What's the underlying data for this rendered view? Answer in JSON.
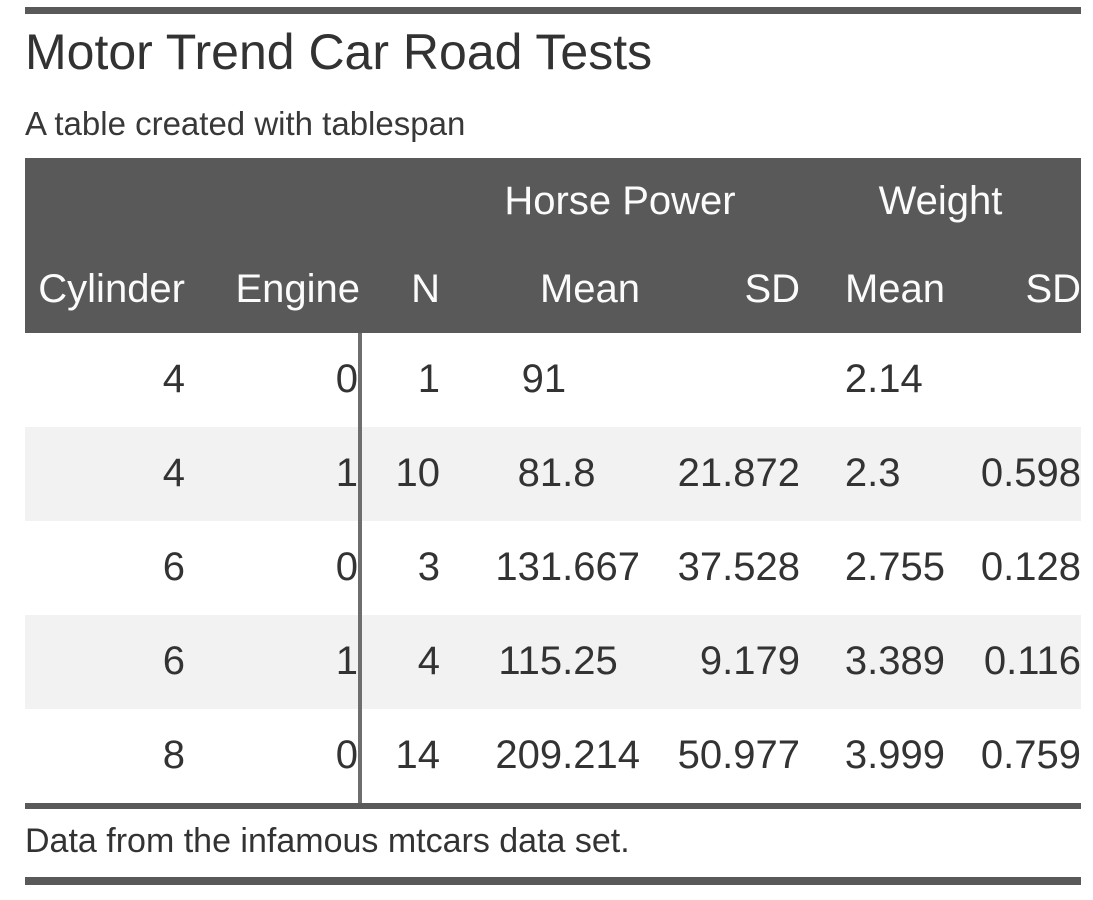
{
  "chart_data": {
    "type": "table",
    "title": "Motor Trend Car Road Tests",
    "subtitle": "A table created with tablespan",
    "footnote": "Data from the infamous mtcars data set.",
    "column_groups": [
      {
        "label": "Horse Power",
        "columns": [
          "Mean",
          "SD"
        ]
      },
      {
        "label": "Weight",
        "columns": [
          "Mean",
          "SD"
        ]
      }
    ],
    "columns": [
      "Cylinder",
      "Engine",
      "N",
      "Mean",
      "SD",
      "Mean",
      "SD"
    ],
    "column_keys": [
      "cylinder",
      "engine",
      "n",
      "hp_mean",
      "hp_sd",
      "wt_mean",
      "wt_sd"
    ],
    "max_decimals": [
      0,
      0,
      0,
      3,
      3,
      3,
      3
    ],
    "rows": [
      [
        4,
        0,
        1,
        91,
        null,
        2.14,
        null
      ],
      [
        4,
        1,
        10,
        81.8,
        21.872,
        2.3,
        0.598
      ],
      [
        6,
        0,
        3,
        131.667,
        37.528,
        2.755,
        0.128
      ],
      [
        6,
        1,
        4,
        115.25,
        9.179,
        3.389,
        0.116
      ],
      [
        8,
        0,
        14,
        209.214,
        50.977,
        3.999,
        0.759
      ]
    ]
  },
  "colors": {
    "header_background": "#595959",
    "header_text": "#fbfbfb",
    "rule": "#595959",
    "stripe": "#f2f2f2",
    "divider": "#6e6e6e",
    "body_text": "#333333"
  }
}
